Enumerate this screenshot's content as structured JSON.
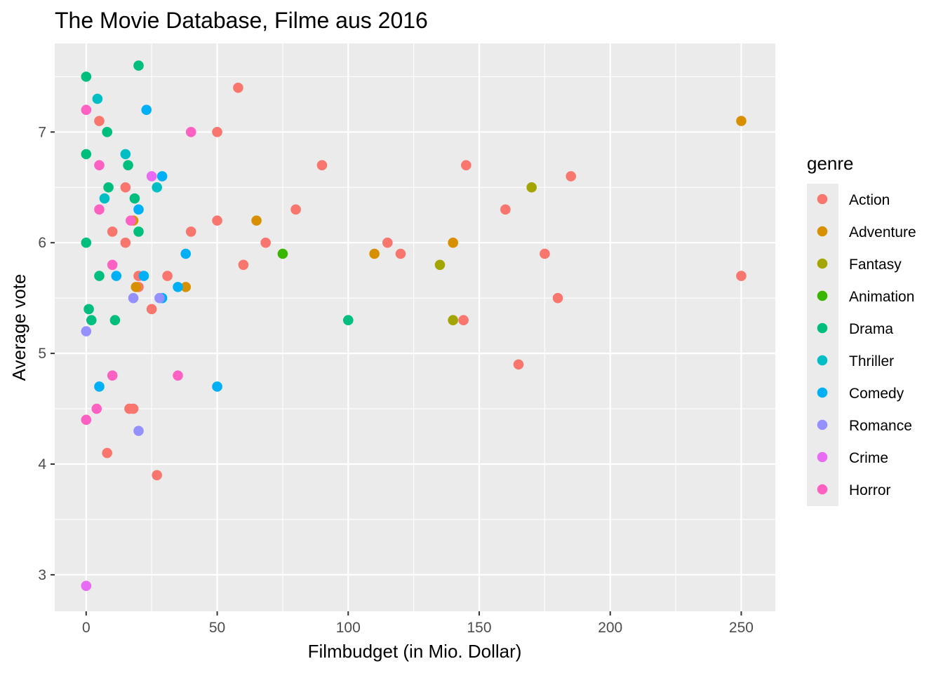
{
  "chart_data": {
    "type": "scatter",
    "title": "The Movie Database, Filme aus 2016",
    "xlabel": "Filmbudget (in Mio. Dollar)",
    "ylabel": "Average vote",
    "xlim": [
      -12,
      263
    ],
    "ylim": [
      2.67,
      7.8
    ],
    "xticks": [
      0,
      50,
      100,
      150,
      200,
      250
    ],
    "yticks": [
      3,
      4,
      5,
      6,
      7
    ],
    "grid": true,
    "legend": {
      "title": "genre",
      "position": "right"
    },
    "series": [
      {
        "name": "Action",
        "color": "#F8766D",
        "points": [
          [
            5,
            7.1
          ],
          [
            58,
            7.4
          ],
          [
            50,
            7.0
          ],
          [
            90,
            6.7
          ],
          [
            15,
            6.5
          ],
          [
            80,
            6.3
          ],
          [
            50,
            6.2
          ],
          [
            10,
            6.1
          ],
          [
            40,
            6.1
          ],
          [
            15,
            6.0
          ],
          [
            68.5,
            6.0
          ],
          [
            60,
            5.8
          ],
          [
            20,
            5.7
          ],
          [
            31,
            5.7
          ],
          [
            20,
            5.6
          ],
          [
            25,
            5.4
          ],
          [
            16.5,
            4.5
          ],
          [
            18,
            4.5
          ],
          [
            8,
            4.1
          ],
          [
            27,
            3.9
          ],
          [
            115,
            6.0
          ],
          [
            120,
            5.9
          ],
          [
            145,
            6.7
          ],
          [
            160,
            6.3
          ],
          [
            185,
            6.6
          ],
          [
            175,
            5.9
          ],
          [
            180,
            5.5
          ],
          [
            144,
            5.3
          ],
          [
            165,
            4.9
          ],
          [
            250,
            5.7
          ]
        ]
      },
      {
        "name": "Adventure",
        "color": "#D89000",
        "points": [
          [
            18,
            6.2
          ],
          [
            65,
            6.2
          ],
          [
            38,
            5.6
          ],
          [
            19,
            5.6
          ],
          [
            110,
            5.9
          ],
          [
            140,
            6.0
          ],
          [
            250,
            7.1
          ]
        ]
      },
      {
        "name": "Fantasy",
        "color": "#A3A500",
        "points": [
          [
            170,
            6.5
          ],
          [
            135,
            5.8
          ],
          [
            140,
            5.3
          ]
        ]
      },
      {
        "name": "Animation",
        "color": "#39B600",
        "points": [
          [
            75,
            5.9
          ]
        ]
      },
      {
        "name": "Drama",
        "color": "#00BF7D",
        "points": [
          [
            0,
            7.5
          ],
          [
            20,
            7.6
          ],
          [
            8,
            7.0
          ],
          [
            0,
            6.8
          ],
          [
            16,
            6.7
          ],
          [
            8.5,
            6.5
          ],
          [
            18.5,
            6.4
          ],
          [
            20,
            6.1
          ],
          [
            0,
            6.0
          ],
          [
            5,
            5.7
          ],
          [
            1,
            5.4
          ],
          [
            2,
            5.3
          ],
          [
            11,
            5.3
          ],
          [
            100,
            5.3
          ]
        ]
      },
      {
        "name": "Thriller",
        "color": "#00BFC4",
        "points": [
          [
            4.3,
            7.3
          ],
          [
            15,
            6.8
          ],
          [
            7,
            6.4
          ],
          [
            27,
            6.5
          ]
        ]
      },
      {
        "name": "Comedy",
        "color": "#00B0F6",
        "points": [
          [
            23,
            7.2
          ],
          [
            29,
            6.6
          ],
          [
            20,
            6.3
          ],
          [
            38,
            5.9
          ],
          [
            11.5,
            5.7
          ],
          [
            22,
            5.7
          ],
          [
            29,
            5.5
          ],
          [
            35,
            5.6
          ],
          [
            5,
            4.7
          ],
          [
            50,
            4.7
          ]
        ]
      },
      {
        "name": "Romance",
        "color": "#9590FF",
        "points": [
          [
            0,
            5.2
          ],
          [
            18,
            5.5
          ],
          [
            28,
            5.5
          ],
          [
            20,
            4.3
          ]
        ]
      },
      {
        "name": "Crime",
        "color": "#E76BF3",
        "points": [
          [
            25,
            6.6
          ],
          [
            0,
            2.9
          ]
        ]
      },
      {
        "name": "Horror",
        "color": "#FF61C3",
        "points": [
          [
            0,
            7.2
          ],
          [
            40,
            7.0
          ],
          [
            5,
            6.7
          ],
          [
            5,
            6.3
          ],
          [
            17,
            6.2
          ],
          [
            10,
            5.8
          ],
          [
            10,
            4.8
          ],
          [
            35,
            4.8
          ],
          [
            4,
            4.5
          ],
          [
            0,
            4.4
          ]
        ]
      }
    ]
  }
}
